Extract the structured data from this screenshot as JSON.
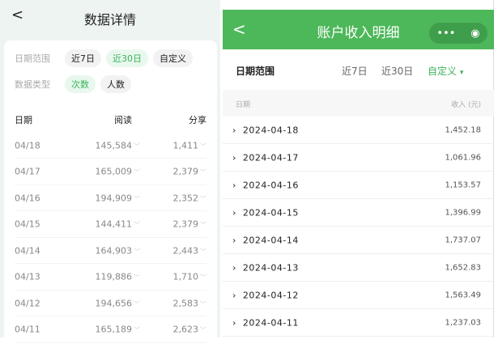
{
  "left": {
    "back_icon": "chevron-left",
    "title": "数据详情",
    "filters": [
      {
        "label": "日期范围",
        "chips": [
          {
            "text": "近7日",
            "active": false
          },
          {
            "text": "近30日",
            "active": true
          },
          {
            "text": "自定义",
            "active": false
          }
        ]
      },
      {
        "label": "数据类型",
        "chips": [
          {
            "text": "次数",
            "active": true
          },
          {
            "text": "人数",
            "active": false
          }
        ]
      }
    ],
    "columns": [
      "日期",
      "阅读",
      "分享"
    ],
    "rows": [
      [
        "04/18",
        "145,584",
        "1,411"
      ],
      [
        "04/17",
        "165,009",
        "2,379"
      ],
      [
        "04/16",
        "194,909",
        "2,352"
      ],
      [
        "04/15",
        "144,411",
        "2,379"
      ],
      [
        "04/14",
        "164,903",
        "2,443"
      ],
      [
        "04/13",
        "119,886",
        "1,710"
      ],
      [
        "04/12",
        "194,656",
        "2,583"
      ],
      [
        "04/11",
        "165,189",
        "2,623"
      ]
    ]
  },
  "right": {
    "title": "账户收入明细",
    "header_color": "#4db85a",
    "more_icon": "•••",
    "target_icon": "◉",
    "range_label": "日期范围",
    "options": [
      "近7日",
      "近30日",
      "自定义"
    ],
    "active_option": "自定义",
    "dropdown_icon": "▾",
    "columns": [
      "日期",
      "收入 (元)"
    ],
    "rows": [
      [
        "2024-04-18",
        "1,452.18"
      ],
      [
        "2024-04-17",
        "1,061.96"
      ],
      [
        "2024-04-16",
        "1,153.57"
      ],
      [
        "2024-04-15",
        "1,396.99"
      ],
      [
        "2024-04-14",
        "1,737.07"
      ],
      [
        "2024-04-13",
        "1,652.83"
      ],
      [
        "2024-04-12",
        "1,563.49"
      ],
      [
        "2024-04-11",
        "1,237.03"
      ]
    ]
  }
}
